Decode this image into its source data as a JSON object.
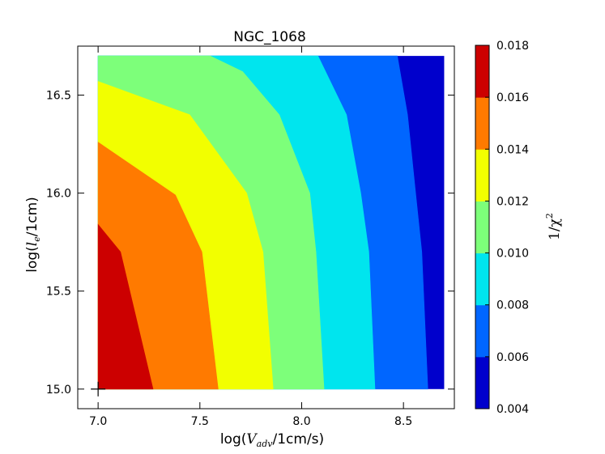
{
  "chart_data": {
    "type": "contour",
    "title": "NGC_1068",
    "xlabel": {
      "prefix": "log(",
      "var": "V",
      "sub": "adv",
      "suffix": "/1cm/s)"
    },
    "ylabel": {
      "prefix": "log(",
      "var": "l",
      "sub": "e",
      "suffix": "/1cm)"
    },
    "colorbar_label": {
      "base": "1/χ",
      "sup": "2"
    },
    "xlim": [
      6.9,
      8.75
    ],
    "ylim": [
      14.9,
      16.75
    ],
    "x_ticks": [
      7.0,
      7.5,
      8.0,
      8.5
    ],
    "x_tick_labels": [
      "7.0",
      "7.5",
      "8.0",
      "8.5"
    ],
    "y_ticks": [
      15.0,
      15.5,
      16.0,
      16.5
    ],
    "y_tick_labels": [
      "15.0",
      "15.5",
      "16.0",
      "16.5"
    ],
    "data_extent": {
      "x": [
        7.0,
        8.7
      ],
      "y": [
        15.0,
        16.7
      ]
    },
    "levels": [
      0.004,
      0.006,
      0.008,
      0.01,
      0.012,
      0.014,
      0.016,
      0.018
    ],
    "level_labels": [
      "0.004",
      "0.006",
      "0.008",
      "0.010",
      "0.012",
      "0.014",
      "0.016",
      "0.018"
    ],
    "level_colors": [
      "#0000cc",
      "#0066ff",
      "#00e5ee",
      "#7dff7a",
      "#f2ff00",
      "#ff7a00",
      "#cc0000"
    ],
    "contour_boundaries": [
      {
        "level": 0.016,
        "points": [
          [
            7.0,
            15.84
          ],
          [
            7.11,
            15.7
          ],
          [
            7.27,
            15.0
          ]
        ]
      },
      {
        "level": 0.014,
        "points": [
          [
            7.0,
            16.26
          ],
          [
            7.38,
            15.99
          ],
          [
            7.51,
            15.7
          ],
          [
            7.59,
            15.0
          ]
        ]
      },
      {
        "level": 0.012,
        "points": [
          [
            7.0,
            16.57
          ],
          [
            7.45,
            16.4
          ],
          [
            7.73,
            16.0
          ],
          [
            7.81,
            15.7
          ],
          [
            7.86,
            15.0
          ]
        ]
      },
      {
        "level": 0.01,
        "points": [
          [
            7.55,
            16.7
          ],
          [
            7.71,
            16.62
          ],
          [
            7.89,
            16.4
          ],
          [
            8.04,
            16.0
          ],
          [
            8.07,
            15.7
          ],
          [
            8.11,
            15.0
          ]
        ]
      },
      {
        "level": 0.008,
        "points": [
          [
            8.08,
            16.7
          ],
          [
            8.22,
            16.4
          ],
          [
            8.29,
            16.0
          ],
          [
            8.33,
            15.7
          ],
          [
            8.36,
            15.0
          ]
        ]
      },
      {
        "level": 0.006,
        "points": [
          [
            8.47,
            16.7
          ],
          [
            8.52,
            16.4
          ],
          [
            8.56,
            16.0
          ],
          [
            8.59,
            15.7
          ],
          [
            8.62,
            15.0
          ]
        ]
      }
    ],
    "marker": {
      "symbol": "+",
      "x": 7.0,
      "y": 15.0
    }
  }
}
